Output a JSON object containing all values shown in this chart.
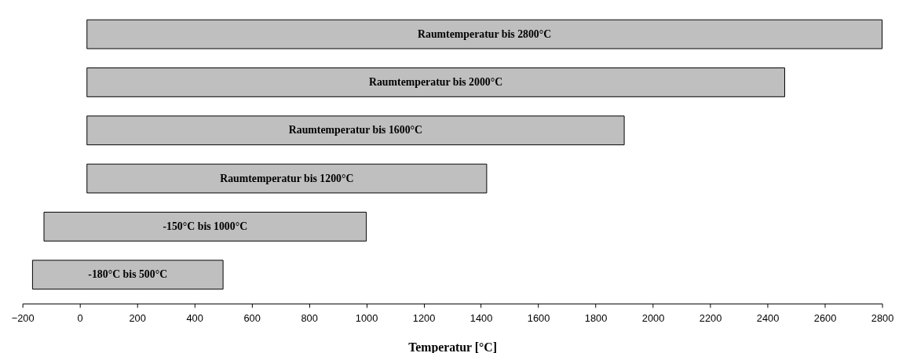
{
  "chart_data": {
    "type": "bar",
    "orientation": "horizontal",
    "xlabel": "Temperatur [°C]",
    "categories": [
      null,
      null,
      null,
      null,
      null,
      null
    ],
    "base": [
      25,
      25,
      25,
      25,
      -125,
      -165
    ],
    "values": [
      2775,
      2435,
      1875,
      1395,
      1125,
      665
    ],
    "annotations": [
      "Raumtemperatur bis 2800°C",
      "Raumtemperatur bis 2000°C",
      "Raumtemperatur bis 1600°C",
      "Raumtemperatur bis 1200°C",
      "-150°C bis 1000°C",
      "-180°C bis 500°C"
    ],
    "color": "#bfbfbf",
    "xlim": [
      -200,
      2800
    ],
    "xticks": [
      -200,
      0,
      200,
      400,
      600,
      800,
      1000,
      1200,
      1400,
      1600,
      1800,
      2000,
      2200,
      2400,
      2600,
      2800
    ],
    "grid": false
  }
}
